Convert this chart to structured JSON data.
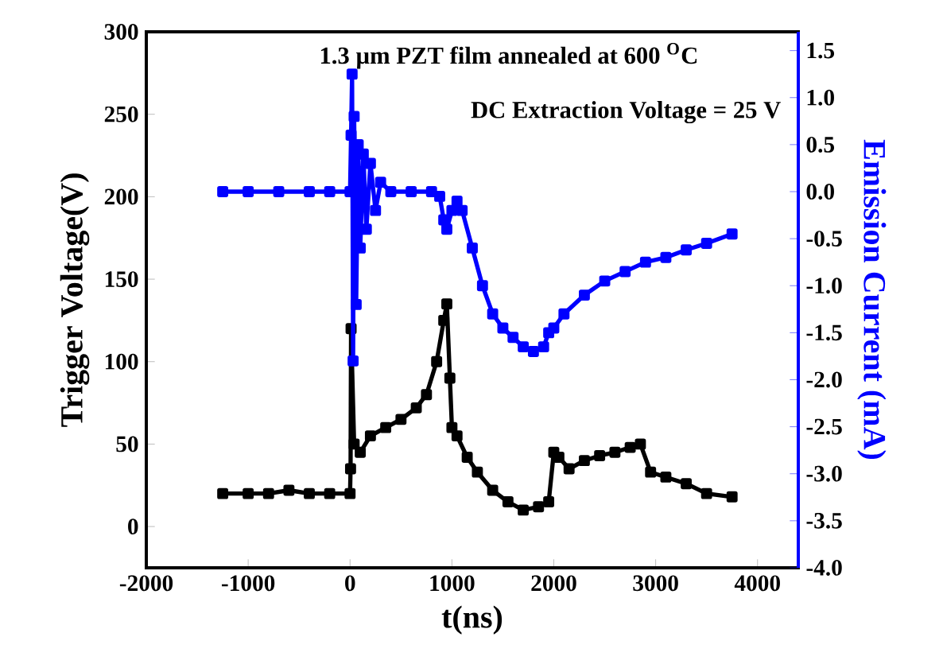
{
  "chart_data": {
    "type": "line",
    "xlabel": "t(ns)",
    "ylabel": "Trigger Voltage(V)",
    "y2label": "Emission Current (mA)",
    "annotations": [
      "1.3 µm PZT film annealed at 600 $^{O}$C",
      "DC Extraction Voltage = 25 V"
    ],
    "xlim": [
      -2000,
      4400
    ],
    "xticks": [
      -2000,
      -1000,
      0,
      1000,
      2000,
      3000,
      4000
    ],
    "ylim": [
      -25,
      300
    ],
    "yticks": [
      0,
      50,
      100,
      150,
      200,
      250,
      300
    ],
    "y2lim": [
      -4,
      1.7
    ],
    "y2ticks": [
      {
        "value": -4,
        "label": "-4.0"
      },
      {
        "value": -3.5,
        "label": "-3.5"
      },
      {
        "value": -3,
        "label": "-3.0"
      },
      {
        "value": -2.5,
        "label": "-2.5"
      },
      {
        "value": -2,
        "label": "-2.0"
      },
      {
        "value": -1.5,
        "label": "-1.5"
      },
      {
        "value": -1,
        "label": "-1.0"
      },
      {
        "value": -0.5,
        "label": "-0.5"
      },
      {
        "value": 0,
        "label": "0.0"
      },
      {
        "value": 0.5,
        "label": "0.5"
      },
      {
        "value": 1,
        "label": "1.0"
      },
      {
        "value": 1.5,
        "label": "1.5"
      }
    ],
    "marker": "square",
    "series": [
      {
        "color": "#000000",
        "x": [
          -1250,
          -1000,
          -800,
          -600,
          -400,
          -200,
          0,
          5,
          10,
          20,
          40,
          100,
          200,
          350,
          500,
          650,
          750,
          850,
          920,
          950,
          980,
          1000,
          1050,
          1150,
          1250,
          1400,
          1550,
          1700,
          1850,
          1950,
          2000,
          2050,
          2150,
          2300,
          2450,
          2600,
          2750,
          2850,
          2950,
          3100,
          3300,
          3500,
          3750
        ],
        "values": [
          20,
          20,
          20,
          22,
          20,
          20,
          20,
          35,
          120,
          null,
          50,
          45,
          55,
          60,
          65,
          72,
          80,
          100,
          125,
          135,
          90,
          60,
          55,
          42,
          33,
          22,
          15,
          10,
          12,
          15,
          45,
          42,
          35,
          40,
          43,
          45,
          48,
          50,
          33,
          30,
          26,
          20,
          18
        ]
      },
      {
        "color": "#0000ff",
        "axis": "y2",
        "x": [
          -1250,
          -1000,
          -700,
          -400,
          -200,
          0,
          10,
          20,
          30,
          40,
          60,
          80,
          100,
          130,
          160,
          200,
          250,
          300,
          400,
          600,
          800,
          880,
          920,
          950,
          1000,
          1050,
          1100,
          1200,
          1300,
          1400,
          1500,
          1600,
          1700,
          1800,
          1900,
          1950,
          2000,
          2100,
          2300,
          2500,
          2700,
          2900,
          3100,
          3300,
          3500,
          3750
        ],
        "values": [
          0,
          0,
          0,
          0,
          0,
          0,
          0.6,
          1.25,
          -1.8,
          0.8,
          -1.2,
          0.5,
          -0.6,
          0.4,
          -0.4,
          0.3,
          -0.2,
          0.1,
          0,
          0,
          0,
          -0.05,
          -0.3,
          -0.4,
          -0.2,
          -0.1,
          -0.2,
          -0.6,
          -1.0,
          -1.3,
          -1.45,
          -1.55,
          -1.65,
          -1.7,
          -1.65,
          -1.5,
          -1.45,
          -1.3,
          -1.1,
          -0.95,
          -0.85,
          -0.75,
          -0.7,
          -0.62,
          -0.55,
          -0.45
        ]
      }
    ]
  }
}
